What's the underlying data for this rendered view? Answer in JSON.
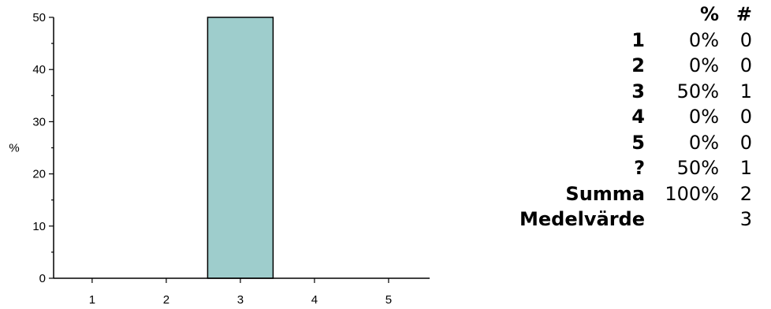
{
  "chart_data": {
    "type": "bar",
    "categories": [
      "1",
      "2",
      "3",
      "4",
      "5"
    ],
    "values": [
      0,
      0,
      50,
      0,
      0
    ],
    "ylabel": "%",
    "xlabel": "",
    "ylim": [
      0,
      50
    ],
    "y_major_ticks": [
      "0",
      "10",
      "20",
      "30",
      "40",
      "50"
    ],
    "bar_color": "#9ecdcc",
    "bar_outline_color": "#000000",
    "grid": false
  },
  "stats_table": {
    "header": {
      "label": "",
      "percent": "%",
      "count": "#"
    },
    "rows": [
      {
        "label": "1",
        "percent": "0%",
        "count": "0"
      },
      {
        "label": "2",
        "percent": "0%",
        "count": "0"
      },
      {
        "label": "3",
        "percent": "50%",
        "count": "1"
      },
      {
        "label": "4",
        "percent": "0%",
        "count": "0"
      },
      {
        "label": "5",
        "percent": "0%",
        "count": "0"
      },
      {
        "label": "?",
        "percent": "50%",
        "count": "1"
      },
      {
        "label": "Summa",
        "percent": "100%",
        "count": "2"
      },
      {
        "label": "Medelvärde",
        "percent": "",
        "count": "3"
      }
    ]
  }
}
